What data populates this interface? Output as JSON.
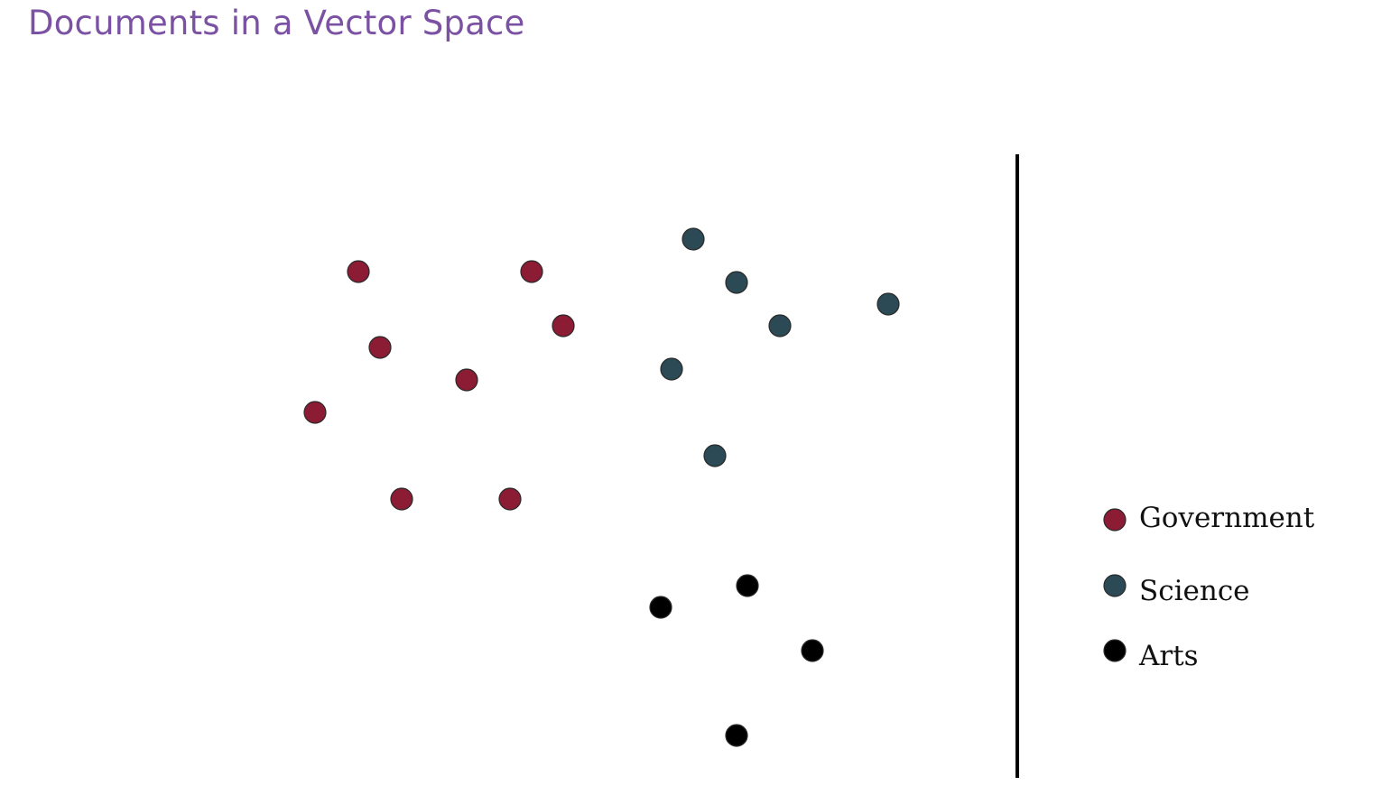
{
  "title": "Documents in a Vector Space",
  "colors": {
    "title": "#7b52a3",
    "divider": "#000000",
    "dot_outline": "#2a2a2a"
  },
  "legend": {
    "placement": "right",
    "items": [
      {
        "label": "Government",
        "color": "#8c1b34",
        "icon": "filled-circle"
      },
      {
        "label": "Science",
        "color": "#2c4a55",
        "icon": "filled-circle"
      },
      {
        "label": "Arts",
        "color": "#000000",
        "icon": "filled-circle"
      }
    ]
  },
  "chart_data": {
    "type": "scatter",
    "axes_visible": false,
    "grid": false,
    "xlim": [
      300,
      1040
    ],
    "ylim": [
      0,
      660
    ],
    "legend_position": "right",
    "series": [
      {
        "name": "Government",
        "color": "#8c1b34",
        "points": [
          {
            "x": 397,
            "y": 560
          },
          {
            "x": 589,
            "y": 560
          },
          {
            "x": 624,
            "y": 500
          },
          {
            "x": 421,
            "y": 476
          },
          {
            "x": 517,
            "y": 440
          },
          {
            "x": 349,
            "y": 404
          },
          {
            "x": 445,
            "y": 308
          },
          {
            "x": 565,
            "y": 308
          }
        ]
      },
      {
        "name": "Science",
        "color": "#2c4a55",
        "points": [
          {
            "x": 768,
            "y": 596
          },
          {
            "x": 816,
            "y": 548
          },
          {
            "x": 864,
            "y": 500
          },
          {
            "x": 984,
            "y": 524
          },
          {
            "x": 744,
            "y": 452
          },
          {
            "x": 792,
            "y": 356
          }
        ]
      },
      {
        "name": "Arts",
        "color": "#000000",
        "points": [
          {
            "x": 828,
            "y": 212
          },
          {
            "x": 732,
            "y": 188
          },
          {
            "x": 900,
            "y": 140
          },
          {
            "x": 816,
            "y": 46
          }
        ]
      }
    ]
  }
}
